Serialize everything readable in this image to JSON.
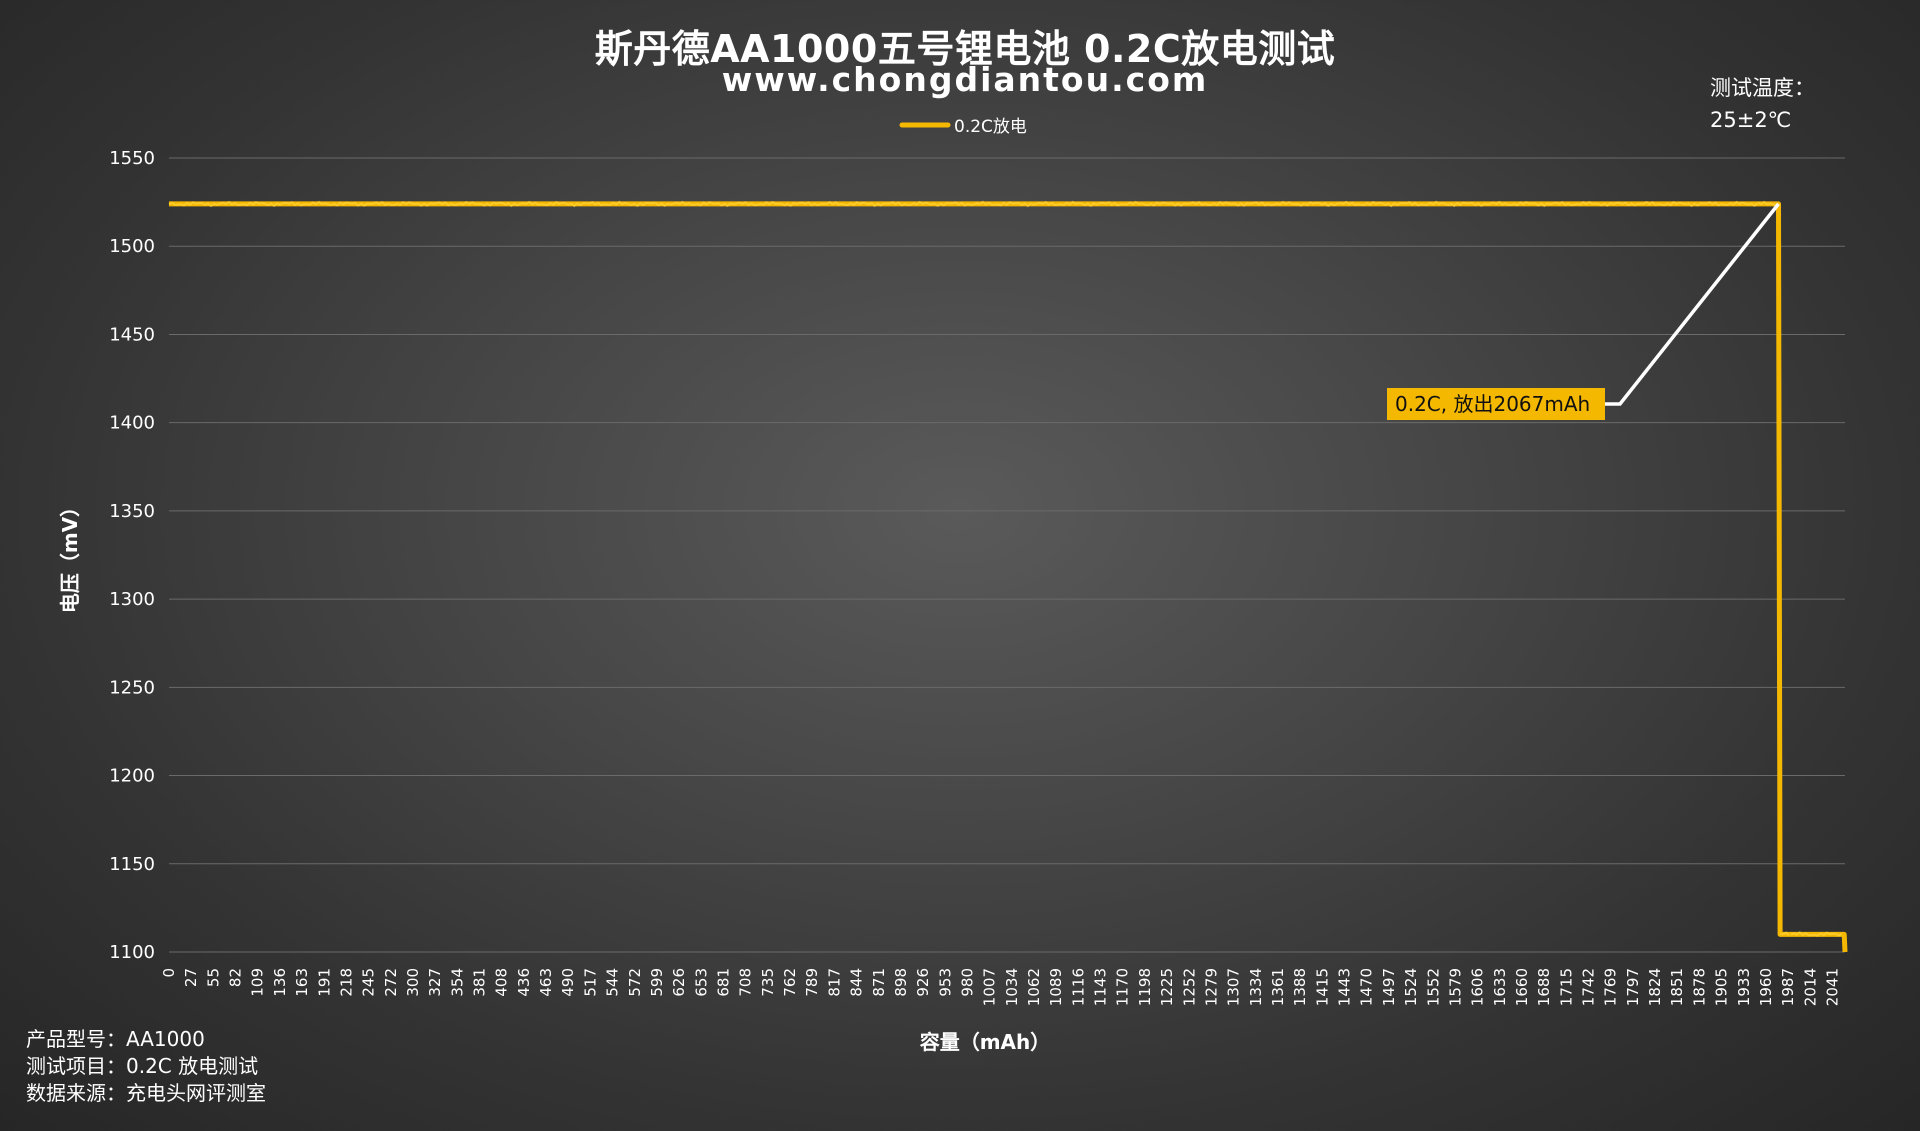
{
  "title": "斯丹德AA1000五号锂电池 0.2C放电测试",
  "subtitle": "www.chongdiantou.com",
  "temperature": {
    "label": "测试温度：",
    "value": "25±2℃"
  },
  "info": [
    {
      "label": "产品型号：",
      "value": "AA1000"
    },
    {
      "label": "测试项目：",
      "value": "0.2C 放电测试"
    },
    {
      "label": "数据来源：",
      "value": "充电头网评测室"
    }
  ],
  "colors": {
    "series": "#f5b800",
    "grid": "#6a6a6a",
    "annotation_line": "#ffffff"
  },
  "chart_data": {
    "type": "line",
    "title": "斯丹德AA1000五号锂电池 0.2C放电测试",
    "subtitle": "www.chongdiantou.com",
    "xlabel": "容量（mAh）",
    "ylabel": "电压（mV）",
    "ylim": [
      1100,
      1550
    ],
    "yticks": [
      1100,
      1150,
      1200,
      1250,
      1300,
      1350,
      1400,
      1450,
      1500,
      1550
    ],
    "xlim": [
      0,
      2067
    ],
    "xticks": [
      0,
      27,
      55,
      82,
      109,
      136,
      163,
      191,
      218,
      245,
      272,
      300,
      327,
      354,
      381,
      408,
      436,
      463,
      490,
      517,
      544,
      572,
      599,
      626,
      653,
      681,
      708,
      735,
      762,
      789,
      817,
      844,
      871,
      898,
      926,
      953,
      980,
      1007,
      1034,
      1062,
      1089,
      1116,
      1143,
      1170,
      1198,
      1225,
      1252,
      1279,
      1307,
      1334,
      1361,
      1388,
      1415,
      1443,
      1470,
      1497,
      1524,
      1552,
      1579,
      1606,
      1633,
      1660,
      1688,
      1715,
      1742,
      1769,
      1797,
      1824,
      1851,
      1878,
      1905,
      1933,
      1960,
      1987,
      2014,
      2041
    ],
    "grid": true,
    "legend_position": "top-center",
    "series": [
      {
        "name": "0.2C放电",
        "color": "#f5b800",
        "points": [
          [
            0,
            1524
          ],
          [
            200,
            1524
          ],
          [
            400,
            1524
          ],
          [
            600,
            1524
          ],
          [
            800,
            1524
          ],
          [
            1000,
            1524
          ],
          [
            1200,
            1524
          ],
          [
            1400,
            1524
          ],
          [
            1600,
            1524
          ],
          [
            1800,
            1524
          ],
          [
            1960,
            1524
          ],
          [
            1985,
            1524
          ],
          [
            1987,
            1110
          ],
          [
            2000,
            1110
          ],
          [
            2066,
            1110
          ],
          [
            2067,
            1100
          ]
        ]
      }
    ],
    "annotations": [
      {
        "text": "0.2C, 放出2067mAh",
        "x": 1985,
        "y": 1524
      }
    ]
  }
}
